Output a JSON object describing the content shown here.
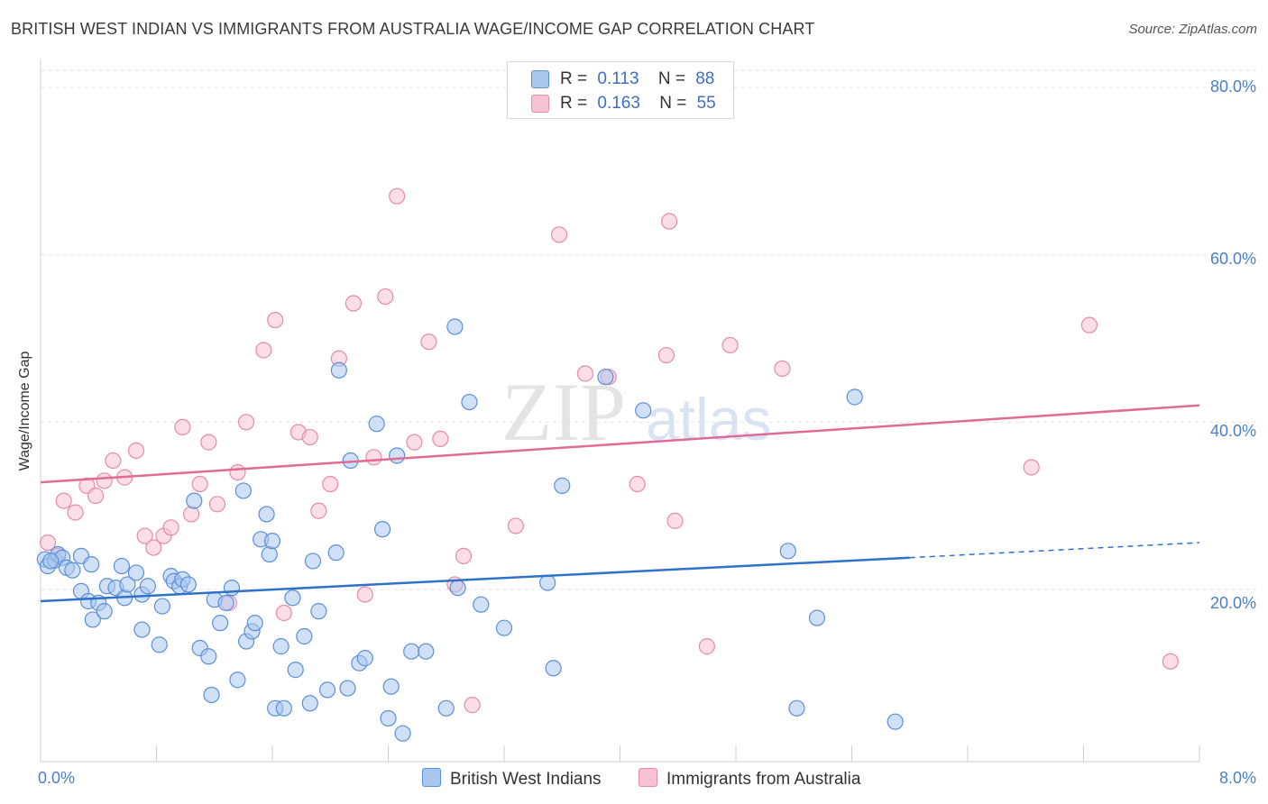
{
  "title": "BRITISH WEST INDIAN VS IMMIGRANTS FROM AUSTRALIA WAGE/INCOME GAP CORRELATION CHART",
  "source": "Source: ZipAtlas.com",
  "watermark": {
    "zip": "ZIP",
    "atlas": "atlas"
  },
  "colors": {
    "blue": "#5b8fd8",
    "blue_fill": "#a9c6ee",
    "blue_line": "#2f72c9",
    "pink": "#e88aa8",
    "pink_fill": "#f7c2d3",
    "pink_line": "#e06b94",
    "tick": "#4a7fc9",
    "grid": "#e4e4e4"
  },
  "legend": {
    "rows": [
      {
        "r_label": "R =",
        "r_value": "0.113",
        "n_label": "N =",
        "n_value": "88"
      },
      {
        "r_label": "R =",
        "r_value": "0.163",
        "n_label": "N =",
        "n_value": "55"
      }
    ]
  },
  "bottom_legend": {
    "blue_label": "British West Indians",
    "pink_label": "Immigrants from Australia"
  },
  "chart_data": {
    "type": "scatter",
    "title": "BRITISH WEST INDIAN VS IMMIGRANTS FROM AUSTRALIA WAGE/INCOME GAP CORRELATION CHART",
    "xlabel": "",
    "ylabel": "Wage/Income Gap",
    "xlim": [
      0,
      8
    ],
    "ylim": [
      0,
      80
    ],
    "x_ticks": [
      "0.0%",
      "8.0%"
    ],
    "y_ticks": [
      "80.0%",
      "60.0%",
      "40.0%",
      "20.0%"
    ],
    "y_tick_values": [
      80,
      60,
      40,
      20
    ],
    "grid": true,
    "legend_placement": "top-center",
    "series": [
      {
        "name": "British West Indians",
        "color": "#5b8fd8",
        "r": 0.113,
        "n": 88,
        "trend": {
          "x": [
            0,
            6.0
          ],
          "y": [
            18.6,
            23.8
          ],
          "dashed_to": [
            8.0,
            25.6
          ]
        },
        "points": [
          [
            0.03,
            23.6
          ],
          [
            0.05,
            22.8
          ],
          [
            0.1,
            23.5
          ],
          [
            0.12,
            24.2
          ],
          [
            0.15,
            23.8
          ],
          [
            0.18,
            22.6
          ],
          [
            0.22,
            22.3
          ],
          [
            0.28,
            24.0
          ],
          [
            0.35,
            23.0
          ],
          [
            0.28,
            19.8
          ],
          [
            0.33,
            18.6
          ],
          [
            0.36,
            16.4
          ],
          [
            0.4,
            18.4
          ],
          [
            0.44,
            17.4
          ],
          [
            0.46,
            20.4
          ],
          [
            0.52,
            20.2
          ],
          [
            0.56,
            22.8
          ],
          [
            0.58,
            19.0
          ],
          [
            0.6,
            20.6
          ],
          [
            0.66,
            22.0
          ],
          [
            0.7,
            19.4
          ],
          [
            0.74,
            20.4
          ],
          [
            0.7,
            15.2
          ],
          [
            0.82,
            13.4
          ],
          [
            0.84,
            18.0
          ],
          [
            0.9,
            21.6
          ],
          [
            0.92,
            21.0
          ],
          [
            0.96,
            20.4
          ],
          [
            0.98,
            21.2
          ],
          [
            1.02,
            20.6
          ],
          [
            1.06,
            30.6
          ],
          [
            1.1,
            13.0
          ],
          [
            1.16,
            12.0
          ],
          [
            1.18,
            7.4
          ],
          [
            1.2,
            18.8
          ],
          [
            1.24,
            16.0
          ],
          [
            1.28,
            18.4
          ],
          [
            1.32,
            20.2
          ],
          [
            1.36,
            9.2
          ],
          [
            1.4,
            31.8
          ],
          [
            1.42,
            13.8
          ],
          [
            1.46,
            15.0
          ],
          [
            1.48,
            16.0
          ],
          [
            1.52,
            26.0
          ],
          [
            1.56,
            29.0
          ],
          [
            1.58,
            24.2
          ],
          [
            1.6,
            25.8
          ],
          [
            1.62,
            5.8
          ],
          [
            1.68,
            5.8
          ],
          [
            1.66,
            13.2
          ],
          [
            1.74,
            19.0
          ],
          [
            1.76,
            10.4
          ],
          [
            1.82,
            14.4
          ],
          [
            1.86,
            6.4
          ],
          [
            1.88,
            23.4
          ],
          [
            1.92,
            17.4
          ],
          [
            1.98,
            8.0
          ],
          [
            2.04,
            24.4
          ],
          [
            2.06,
            46.2
          ],
          [
            2.12,
            8.2
          ],
          [
            2.14,
            35.4
          ],
          [
            2.2,
            11.2
          ],
          [
            2.24,
            11.8
          ],
          [
            2.32,
            39.8
          ],
          [
            2.36,
            27.2
          ],
          [
            2.4,
            4.6
          ],
          [
            2.42,
            8.4
          ],
          [
            2.46,
            36.0
          ],
          [
            2.5,
            2.8
          ],
          [
            2.56,
            12.6
          ],
          [
            2.66,
            12.6
          ],
          [
            2.8,
            5.8
          ],
          [
            2.86,
            51.4
          ],
          [
            2.88,
            20.2
          ],
          [
            2.96,
            42.4
          ],
          [
            3.04,
            18.2
          ],
          [
            3.2,
            15.4
          ],
          [
            3.5,
            20.8
          ],
          [
            3.54,
            10.6
          ],
          [
            3.6,
            32.4
          ],
          [
            3.9,
            45.4
          ],
          [
            4.16,
            41.4
          ],
          [
            5.16,
            24.6
          ],
          [
            5.22,
            5.8
          ],
          [
            5.36,
            16.6
          ],
          [
            5.62,
            43.0
          ],
          [
            5.9,
            4.2
          ],
          [
            0.07,
            23.4
          ]
        ]
      },
      {
        "name": "Immigrants from Australia",
        "color": "#e88aa8",
        "r": 0.163,
        "n": 55,
        "trend": {
          "x": [
            0,
            8.0
          ],
          "y": [
            32.8,
            42.0
          ]
        },
        "points": [
          [
            0.05,
            25.6
          ],
          [
            0.12,
            24.0
          ],
          [
            0.16,
            30.6
          ],
          [
            0.24,
            29.2
          ],
          [
            0.32,
            32.4
          ],
          [
            0.38,
            31.2
          ],
          [
            0.44,
            33.0
          ],
          [
            0.5,
            35.4
          ],
          [
            0.58,
            33.4
          ],
          [
            0.66,
            36.6
          ],
          [
            0.72,
            26.4
          ],
          [
            0.78,
            25.0
          ],
          [
            0.85,
            26.4
          ],
          [
            0.9,
            27.4
          ],
          [
            0.98,
            39.4
          ],
          [
            1.04,
            29.0
          ],
          [
            1.1,
            32.6
          ],
          [
            1.16,
            37.6
          ],
          [
            1.22,
            30.2
          ],
          [
            1.3,
            18.4
          ],
          [
            1.36,
            34.0
          ],
          [
            1.42,
            40.0
          ],
          [
            1.54,
            48.6
          ],
          [
            1.62,
            52.2
          ],
          [
            1.68,
            17.2
          ],
          [
            1.78,
            38.8
          ],
          [
            1.86,
            38.2
          ],
          [
            1.92,
            29.4
          ],
          [
            2.0,
            32.6
          ],
          [
            2.06,
            47.6
          ],
          [
            2.16,
            54.2
          ],
          [
            2.24,
            19.4
          ],
          [
            2.3,
            35.8
          ],
          [
            2.38,
            55.0
          ],
          [
            2.46,
            67.0
          ],
          [
            2.58,
            37.6
          ],
          [
            2.68,
            49.6
          ],
          [
            2.76,
            38.0
          ],
          [
            2.86,
            20.6
          ],
          [
            2.92,
            24.0
          ],
          [
            2.98,
            6.2
          ],
          [
            3.28,
            27.6
          ],
          [
            3.58,
            62.4
          ],
          [
            3.76,
            45.8
          ],
          [
            3.92,
            45.4
          ],
          [
            4.12,
            32.6
          ],
          [
            4.32,
            48.0
          ],
          [
            4.34,
            64.0
          ],
          [
            4.38,
            28.2
          ],
          [
            4.6,
            13.2
          ],
          [
            4.76,
            49.2
          ],
          [
            5.12,
            46.4
          ],
          [
            6.84,
            34.6
          ],
          [
            7.24,
            51.6
          ],
          [
            7.8,
            11.4
          ]
        ]
      }
    ]
  }
}
